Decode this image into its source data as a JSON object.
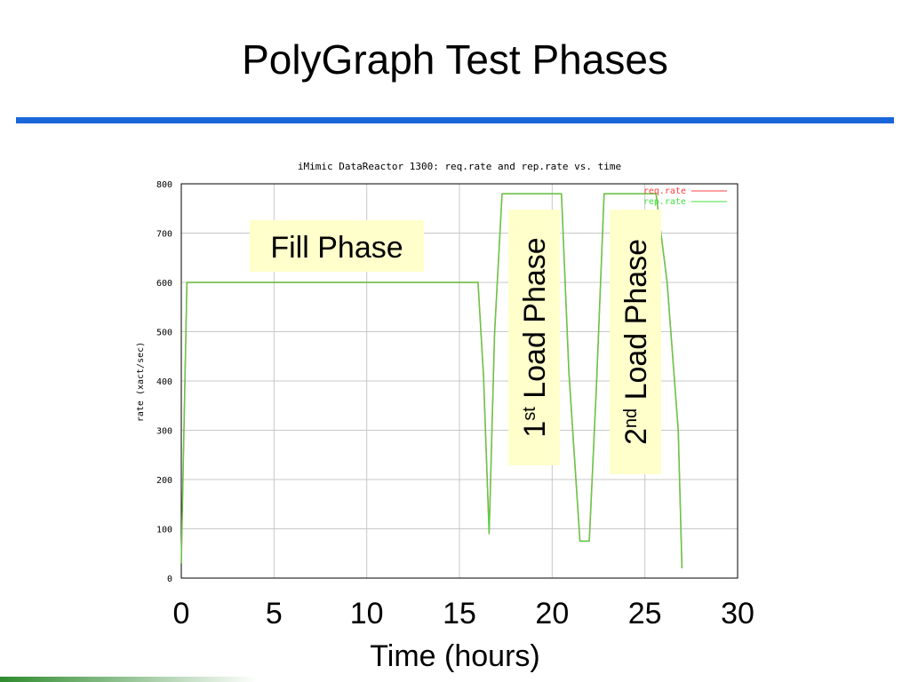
{
  "slide": {
    "title": "PolyGraph Test Phases"
  },
  "chart_data": {
    "type": "line",
    "title": "iMimic DataReactor 1300: req.rate and rep.rate vs. time",
    "ylabel": "rate (xact/sec)",
    "xlabel": "Time (hours)",
    "xlim": [
      0,
      30
    ],
    "ylim": [
      0,
      800
    ],
    "x_ticks": [
      0,
      5,
      10,
      15,
      20,
      25,
      30
    ],
    "y_ticks": [
      0,
      100,
      200,
      300,
      400,
      500,
      600,
      700,
      800
    ],
    "grid": true,
    "legend_position": "top-right",
    "series": [
      {
        "name": "req.rate",
        "color": "#ff4040",
        "x": [
          0,
          0.3,
          0.6,
          16.0,
          16.3,
          16.6,
          16.9,
          17.3,
          20.5,
          20.9,
          21.5,
          22.0,
          22.4,
          22.8,
          25.6,
          26.2,
          26.8,
          27.0
        ],
        "y": [
          30,
          600,
          600,
          600,
          410,
          90,
          500,
          780,
          780,
          420,
          75,
          75,
          400,
          780,
          780,
          600,
          300,
          20
        ]
      },
      {
        "name": "rep.rate",
        "color": "#40e040",
        "x": [
          0,
          0.3,
          0.6,
          16.0,
          16.3,
          16.6,
          16.9,
          17.3,
          20.5,
          20.9,
          21.5,
          22.0,
          22.4,
          22.8,
          25.6,
          26.2,
          26.8,
          27.0
        ],
        "y": [
          30,
          600,
          600,
          600,
          410,
          90,
          500,
          780,
          780,
          420,
          75,
          75,
          400,
          780,
          780,
          600,
          300,
          20
        ]
      }
    ],
    "annotations": [
      {
        "text": "Fill Phase",
        "orientation": "horizontal"
      },
      {
        "prefix": "1",
        "sup": "st",
        "text": " Load Phase",
        "orientation": "vertical"
      },
      {
        "prefix": "2",
        "sup": "nd",
        "text": " Load Phase",
        "orientation": "vertical"
      }
    ]
  }
}
